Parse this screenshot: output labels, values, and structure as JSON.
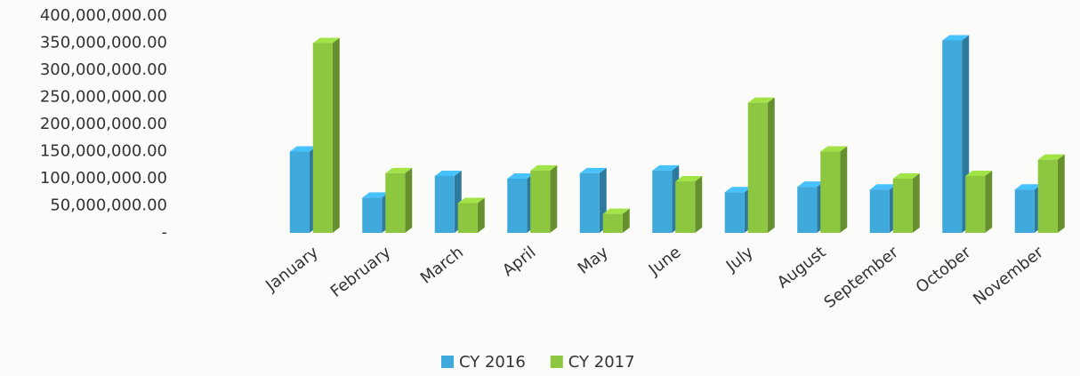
{
  "chart_data": {
    "type": "bar3d",
    "categories": [
      "January",
      "February",
      "March",
      "April",
      "May",
      "June",
      "July",
      "August",
      "September",
      "October",
      "November"
    ],
    "series": [
      {
        "name": "CY 2016",
        "color": "#3fa9dc",
        "values": [
          150000000,
          65000000,
          105000000,
          100000000,
          110000000,
          115000000,
          75000000,
          85000000,
          80000000,
          355000000,
          80000000
        ]
      },
      {
        "name": "CY 2017",
        "color": "#8dc63f",
        "values": [
          350000000,
          110000000,
          55000000,
          115000000,
          35000000,
          95000000,
          240000000,
          150000000,
          100000000,
          105000000,
          135000000
        ]
      }
    ],
    "ylim": [
      0,
      400000000
    ],
    "yticks": [
      {
        "value": 0,
        "label": "-"
      },
      {
        "value": 50000000,
        "label": "50,000,000.00"
      },
      {
        "value": 100000000,
        "label": "100,000,000.00"
      },
      {
        "value": 150000000,
        "label": "150,000,000.00"
      },
      {
        "value": 200000000,
        "label": "200,000,000.00"
      },
      {
        "value": 250000000,
        "label": "250,000,000.00"
      },
      {
        "value": 300000000,
        "label": "300,000,000.00"
      },
      {
        "value": 350000000,
        "label": "350,000,000.00"
      },
      {
        "value": 400000000,
        "label": "400,000,000.00"
      }
    ],
    "grid": false,
    "legend": "bottom"
  }
}
